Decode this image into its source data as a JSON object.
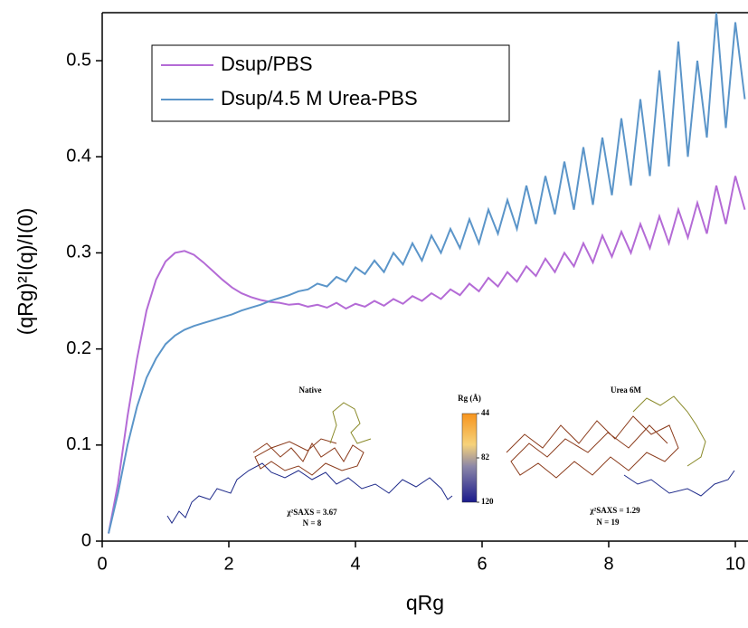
{
  "chart_data": {
    "type": "line",
    "x_label": "qRg",
    "y_label": "(qRg)²I(q)/I(0)",
    "xlim": [
      0,
      10.2
    ],
    "ylim": [
      0,
      0.55
    ],
    "xticks": [
      0,
      2,
      4,
      6,
      8,
      10
    ],
    "yticks": [
      0,
      0.1,
      0.2,
      0.3,
      0.4,
      0.5
    ],
    "legend": "top-left",
    "x": [
      0.1,
      0.25,
      0.4,
      0.55,
      0.7,
      0.85,
      1.0,
      1.15,
      1.3,
      1.45,
      1.6,
      1.75,
      1.9,
      2.05,
      2.2,
      2.35,
      2.5,
      2.65,
      2.8,
      2.95,
      3.1,
      3.25,
      3.4,
      3.55,
      3.7,
      3.85,
      4.0,
      4.15,
      4.3,
      4.45,
      4.6,
      4.75,
      4.9,
      5.05,
      5.2,
      5.35,
      5.5,
      5.65,
      5.8,
      5.95,
      6.1,
      6.25,
      6.4,
      6.55,
      6.7,
      6.85,
      7.0,
      7.15,
      7.3,
      7.45,
      7.6,
      7.75,
      7.9,
      8.05,
      8.2,
      8.35,
      8.5,
      8.65,
      8.8,
      8.95,
      9.1,
      9.25,
      9.4,
      9.55,
      9.7,
      9.85,
      10.0,
      10.15
    ],
    "series": [
      {
        "name": "Dsup/PBS",
        "color": "#b46bd6",
        "values": [
          0.008,
          0.06,
          0.13,
          0.19,
          0.24,
          0.272,
          0.291,
          0.3,
          0.302,
          0.298,
          0.29,
          0.281,
          0.272,
          0.264,
          0.258,
          0.254,
          0.251,
          0.249,
          0.248,
          0.246,
          0.247,
          0.244,
          0.246,
          0.243,
          0.248,
          0.242,
          0.247,
          0.244,
          0.25,
          0.245,
          0.252,
          0.247,
          0.255,
          0.25,
          0.258,
          0.252,
          0.262,
          0.256,
          0.268,
          0.26,
          0.274,
          0.265,
          0.28,
          0.27,
          0.286,
          0.276,
          0.294,
          0.28,
          0.3,
          0.286,
          0.31,
          0.29,
          0.318,
          0.296,
          0.322,
          0.3,
          0.33,
          0.305,
          0.338,
          0.31,
          0.345,
          0.316,
          0.352,
          0.32,
          0.37,
          0.33,
          0.38,
          0.345
        ]
      },
      {
        "name": "Dsup/4.5 M Urea-PBS",
        "color": "#5b95c9",
        "values": [
          0.008,
          0.05,
          0.1,
          0.14,
          0.17,
          0.19,
          0.205,
          0.214,
          0.22,
          0.224,
          0.227,
          0.23,
          0.233,
          0.236,
          0.24,
          0.243,
          0.246,
          0.25,
          0.253,
          0.256,
          0.26,
          0.262,
          0.268,
          0.265,
          0.275,
          0.27,
          0.285,
          0.278,
          0.292,
          0.28,
          0.3,
          0.288,
          0.31,
          0.292,
          0.318,
          0.3,
          0.325,
          0.305,
          0.335,
          0.31,
          0.345,
          0.32,
          0.355,
          0.325,
          0.37,
          0.33,
          0.38,
          0.34,
          0.395,
          0.345,
          0.41,
          0.35,
          0.42,
          0.36,
          0.44,
          0.37,
          0.46,
          0.38,
          0.49,
          0.39,
          0.52,
          0.4,
          0.5,
          0.42,
          0.55,
          0.43,
          0.54,
          0.46
        ]
      }
    ],
    "annotations": [
      "Native",
      "Urea 6M",
      "χ²SAXS = 3.67",
      "N = 8",
      "χ²SAXS = 1.29",
      "N = 19"
    ],
    "colorbar": {
      "label": "Rg (Å)",
      "ticks": [
        44,
        82,
        120
      ]
    }
  }
}
